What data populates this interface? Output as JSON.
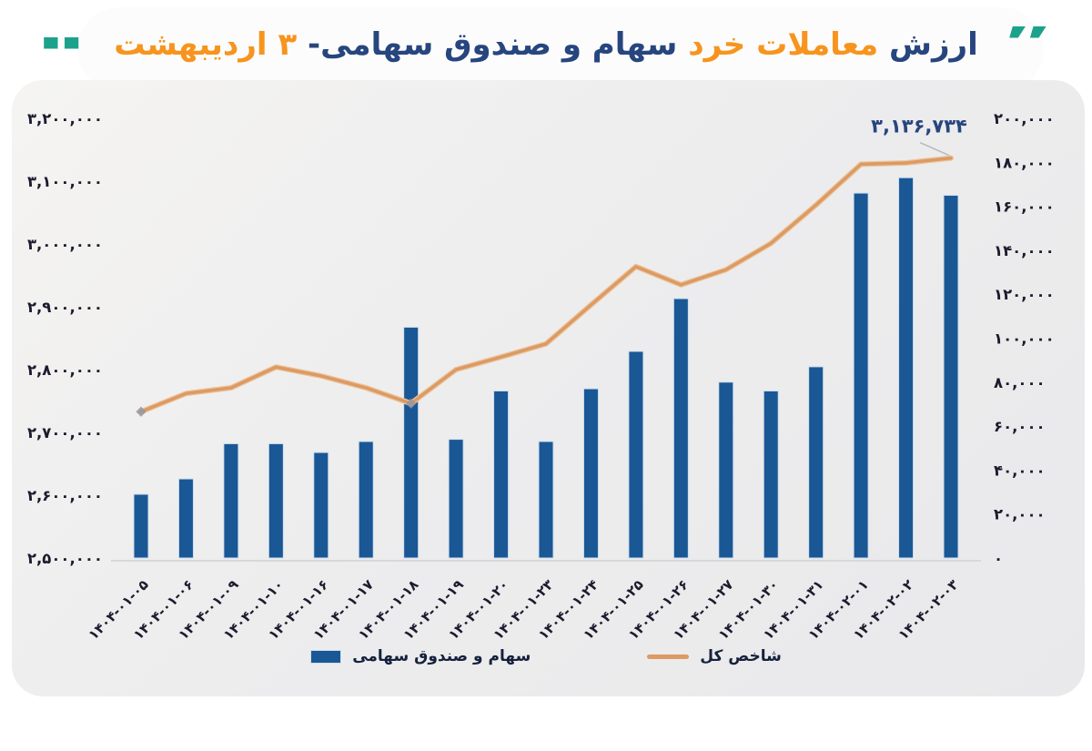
{
  "title": {
    "part1": "ارزش",
    "part2": " معاملات خرد ",
    "part3": "سهام و صندوق سهامی- ",
    "part4": "۳ اردیبهشت",
    "quote_open": "“",
    "quote_close": "”"
  },
  "legend": {
    "line_label": "شاخص کل",
    "bar_label": "سهام و صندوق سهامی"
  },
  "annotation_text": "۳,۱۳۶,۷۳۴",
  "colors": {
    "bar": "#1a5795",
    "bar_edge": "#cfe0ef",
    "line": "#dc9a63",
    "line_light": "#ecc49c",
    "title_orange": "#f7941e",
    "title_blue": "#27457e",
    "quote_teal": "#1ca28b",
    "tick_text": "#1b1b2e",
    "axis_line": "#d8d8da",
    "marker_gray": "#96969e",
    "annotation": "#27457e"
  },
  "chart_data": {
    "type": "bar",
    "subtype": "bar-and-line-dual-axis",
    "categories": [
      "۱۴۰۴-۰۱-۰۵",
      "۱۴۰۴-۰۱-۰۶",
      "۱۴۰۴-۰۱-۰۹",
      "۱۴۰۴-۰۱-۱۰",
      "۱۴۰۴-۰۱-۱۶",
      "۱۴۰۴-۰۱-۱۷",
      "۱۴۰۴-۰۱-۱۸",
      "۱۴۰۴-۰۱-۱۹",
      "۱۴۰۴-۰۱-۲۰",
      "۱۴۰۴-۰۱-۲۳",
      "۱۴۰۴-۰۱-۲۴",
      "۱۴۰۴-۰۱-۲۵",
      "۱۴۰۴-۰۱-۲۶",
      "۱۴۰۴-۰۱-۲۷",
      "۱۴۰۴-۰۱-۳۰",
      "۱۴۰۴-۰۱-۳۱",
      "۱۴۰۴-۰۲-۰۱",
      "۱۴۰۴-۰۲-۰۲",
      "۱۴۰۴-۰۲-۰۳"
    ],
    "series": [
      {
        "name": "سهام و صندوق سهامی",
        "type": "bar",
        "axis": "right",
        "values": [
          29000,
          36000,
          52000,
          52000,
          48000,
          53000,
          105000,
          54000,
          76000,
          53000,
          77000,
          94000,
          118000,
          80000,
          76000,
          87000,
          166000,
          173000,
          165000
        ]
      },
      {
        "name": "شاخص کل",
        "type": "line",
        "axis": "left",
        "values": [
          2733000,
          2762000,
          2771000,
          2804000,
          2790000,
          2771000,
          2746000,
          2800000,
          2820000,
          2841000,
          2903000,
          2964000,
          2935000,
          2959000,
          3001000,
          3062000,
          3127000,
          3129000,
          3136734
        ]
      }
    ],
    "left_axis": {
      "min": 2500000,
      "max": 3200000,
      "step": 100000,
      "tick_labels": [
        "۳,۲۰۰,۰۰۰",
        "۳,۱۰۰,۰۰۰",
        "۳,۰۰۰,۰۰۰",
        "۲,۹۰۰,۰۰۰",
        "۲,۸۰۰,۰۰۰",
        "۲,۷۰۰,۰۰۰",
        "۲,۶۰۰,۰۰۰",
        "۲,۵۰۰,۰۰۰"
      ]
    },
    "right_axis": {
      "min": 0,
      "max": 200000,
      "step": 20000,
      "tick_labels": [
        "۲۰۰,۰۰۰",
        "۱۸۰,۰۰۰",
        "۱۶۰,۰۰۰",
        "۱۴۰,۰۰۰",
        "۱۲۰,۰۰۰",
        "۱۰۰,۰۰۰",
        "۸۰,۰۰۰",
        "۶۰,۰۰۰",
        "۴۰,۰۰۰",
        "۲۰,۰۰۰",
        "۰"
      ],
      "tick_values": [
        200000,
        180000,
        160000,
        140000,
        120000,
        100000,
        80000,
        60000,
        40000,
        20000,
        0
      ]
    },
    "annotation": {
      "text": "۳,۱۳۶,۷۳۴",
      "series": "شاخص کل",
      "point_index": 18
    },
    "legend_position": "bottom",
    "grid": false,
    "marker_point_indices": [
      0,
      6
    ]
  }
}
